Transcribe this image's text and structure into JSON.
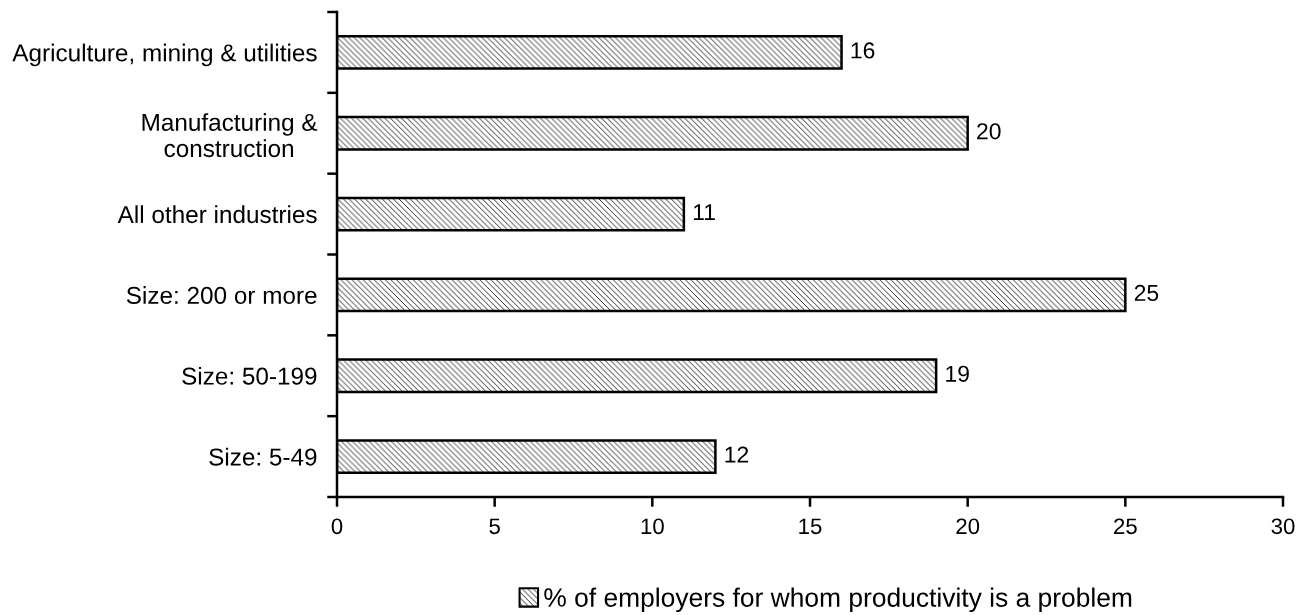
{
  "chart_data": {
    "type": "bar",
    "orientation": "horizontal",
    "categories": [
      "Agriculture, mining & utilities",
      "Manufacturing &\nconstruction",
      "All other industries",
      "Size: 200 or more",
      "Size: 50-199",
      "Size: 5-49"
    ],
    "series": [
      {
        "name": "% of employers for whom productivity is a problem",
        "color": "#000000",
        "values": [
          16,
          20,
          11,
          25,
          19,
          12
        ]
      }
    ],
    "xlim": [
      0,
      30
    ],
    "xticks": [
      0,
      5,
      10,
      15,
      20,
      25,
      30
    ],
    "legend": "bottom",
    "data_labels": true
  }
}
